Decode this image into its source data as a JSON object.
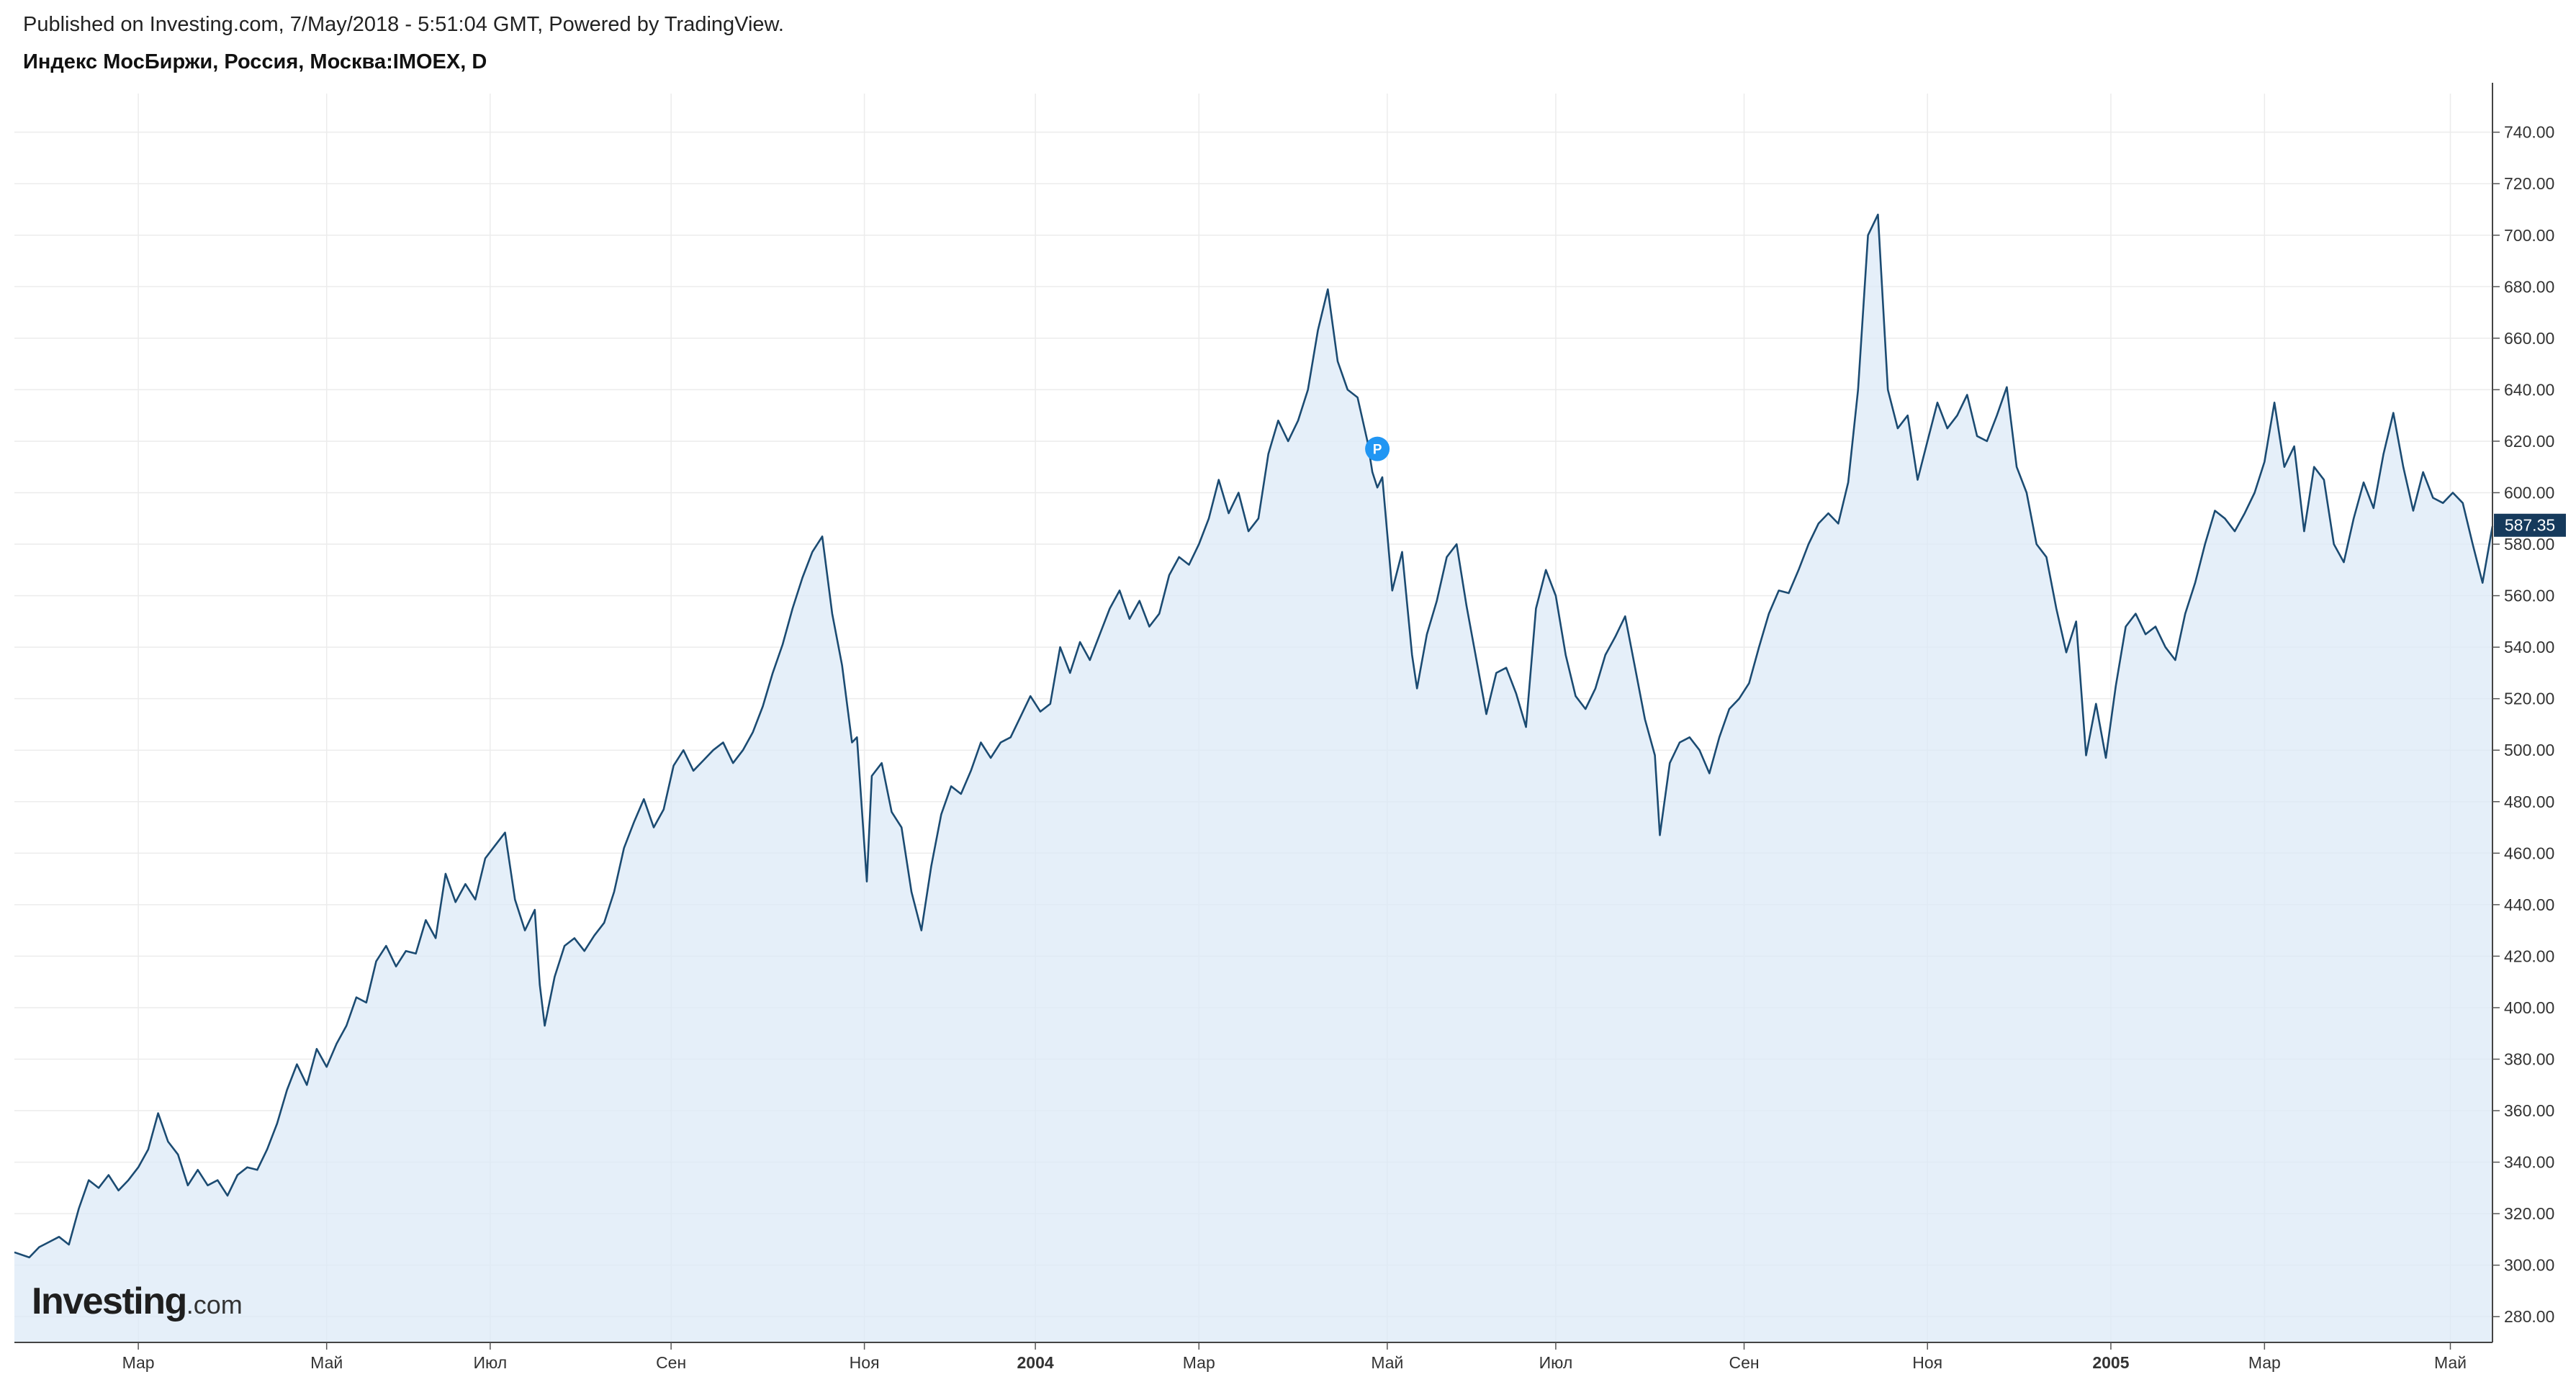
{
  "header": {
    "published": "Published on Investing.com, 7/May/2018 - 5:51:04 GMT, Powered by TradingView.",
    "instrument": "Индекс МосБиржи, Россия, Москва:IMOEX, D"
  },
  "logo": {
    "main": "Investing",
    "suffix": ".com"
  },
  "colors": {
    "line": "#1b4b72",
    "fill": "#dce9f7",
    "grid": "#ececec",
    "price_tag": "#163a5c",
    "marker": "#2196f3"
  },
  "chart_data": {
    "type": "area",
    "title": "Индекс МосБиржи, Россия, Москва:IMOEX, D",
    "ylim": [
      270,
      755
    ],
    "y_ticks": [
      "280.00",
      "300.00",
      "320.00",
      "340.00",
      "360.00",
      "380.00",
      "400.00",
      "420.00",
      "440.00",
      "460.00",
      "480.00",
      "500.00",
      "520.00",
      "540.00",
      "560.00",
      "580.00",
      "600.00",
      "620.00",
      "640.00",
      "660.00",
      "680.00",
      "700.00",
      "720.00",
      "740.00"
    ],
    "x_ticks": [
      {
        "label": "Мар",
        "t": 0.05,
        "bold": false
      },
      {
        "label": "Май",
        "t": 0.126,
        "bold": false
      },
      {
        "label": "Июл",
        "t": 0.192,
        "bold": false
      },
      {
        "label": "Сен",
        "t": 0.265,
        "bold": false
      },
      {
        "label": "Ноя",
        "t": 0.343,
        "bold": false
      },
      {
        "label": "2004",
        "t": 0.412,
        "bold": true
      },
      {
        "label": "Мар",
        "t": 0.478,
        "bold": false
      },
      {
        "label": "Май",
        "t": 0.554,
        "bold": false
      },
      {
        "label": "Июл",
        "t": 0.622,
        "bold": false
      },
      {
        "label": "Сен",
        "t": 0.698,
        "bold": false
      },
      {
        "label": "Ноя",
        "t": 0.772,
        "bold": false
      },
      {
        "label": "2005",
        "t": 0.846,
        "bold": true
      },
      {
        "label": "Мар",
        "t": 0.908,
        "bold": false
      },
      {
        "label": "Май",
        "t": 0.983,
        "bold": false
      }
    ],
    "last_value": "587.35",
    "marker_label": "P",
    "marker_point": {
      "t": 0.55,
      "value": 617
    },
    "series": [
      {
        "points": [
          [
            0.0,
            305
          ],
          [
            0.006,
            303
          ],
          [
            0.01,
            307
          ],
          [
            0.014,
            309
          ],
          [
            0.018,
            311
          ],
          [
            0.022,
            308
          ],
          [
            0.026,
            322
          ],
          [
            0.03,
            333
          ],
          [
            0.034,
            330
          ],
          [
            0.038,
            335
          ],
          [
            0.042,
            329
          ],
          [
            0.046,
            333
          ],
          [
            0.05,
            338
          ],
          [
            0.054,
            345
          ],
          [
            0.058,
            359
          ],
          [
            0.062,
            348
          ],
          [
            0.066,
            343
          ],
          [
            0.07,
            331
          ],
          [
            0.074,
            337
          ],
          [
            0.078,
            331
          ],
          [
            0.082,
            333
          ],
          [
            0.086,
            327
          ],
          [
            0.09,
            335
          ],
          [
            0.094,
            338
          ],
          [
            0.098,
            337
          ],
          [
            0.102,
            345
          ],
          [
            0.106,
            355
          ],
          [
            0.11,
            368
          ],
          [
            0.114,
            378
          ],
          [
            0.118,
            370
          ],
          [
            0.122,
            384
          ],
          [
            0.126,
            377
          ],
          [
            0.13,
            386
          ],
          [
            0.134,
            393
          ],
          [
            0.138,
            404
          ],
          [
            0.142,
            402
          ],
          [
            0.146,
            418
          ],
          [
            0.15,
            424
          ],
          [
            0.154,
            416
          ],
          [
            0.158,
            422
          ],
          [
            0.162,
            421
          ],
          [
            0.166,
            434
          ],
          [
            0.17,
            427
          ],
          [
            0.174,
            452
          ],
          [
            0.178,
            441
          ],
          [
            0.182,
            448
          ],
          [
            0.186,
            442
          ],
          [
            0.19,
            458
          ],
          [
            0.194,
            463
          ],
          [
            0.198,
            468
          ],
          [
            0.202,
            442
          ],
          [
            0.206,
            430
          ],
          [
            0.21,
            438
          ],
          [
            0.212,
            409
          ],
          [
            0.214,
            393
          ],
          [
            0.218,
            412
          ],
          [
            0.222,
            424
          ],
          [
            0.226,
            427
          ],
          [
            0.23,
            422
          ],
          [
            0.234,
            428
          ],
          [
            0.238,
            433
          ],
          [
            0.242,
            445
          ],
          [
            0.246,
            462
          ],
          [
            0.25,
            472
          ],
          [
            0.254,
            481
          ],
          [
            0.258,
            470
          ],
          [
            0.262,
            477
          ],
          [
            0.266,
            494
          ],
          [
            0.27,
            500
          ],
          [
            0.274,
            492
          ],
          [
            0.278,
            496
          ],
          [
            0.282,
            500
          ],
          [
            0.286,
            503
          ],
          [
            0.29,
            495
          ],
          [
            0.294,
            500
          ],
          [
            0.298,
            507
          ],
          [
            0.302,
            517
          ],
          [
            0.306,
            530
          ],
          [
            0.31,
            541
          ],
          [
            0.314,
            555
          ],
          [
            0.318,
            567
          ],
          [
            0.322,
            577
          ],
          [
            0.326,
            583
          ],
          [
            0.33,
            553
          ],
          [
            0.334,
            533
          ],
          [
            0.338,
            503
          ],
          [
            0.34,
            505
          ],
          [
            0.344,
            449
          ],
          [
            0.346,
            490
          ],
          [
            0.35,
            495
          ],
          [
            0.354,
            476
          ],
          [
            0.358,
            470
          ],
          [
            0.362,
            445
          ],
          [
            0.366,
            430
          ],
          [
            0.37,
            455
          ],
          [
            0.374,
            475
          ],
          [
            0.378,
            486
          ],
          [
            0.382,
            483
          ],
          [
            0.386,
            492
          ],
          [
            0.39,
            503
          ],
          [
            0.394,
            497
          ],
          [
            0.398,
            503
          ],
          [
            0.402,
            505
          ],
          [
            0.406,
            513
          ],
          [
            0.41,
            521
          ],
          [
            0.414,
            515
          ],
          [
            0.418,
            518
          ],
          [
            0.422,
            540
          ],
          [
            0.426,
            530
          ],
          [
            0.43,
            542
          ],
          [
            0.434,
            535
          ],
          [
            0.438,
            545
          ],
          [
            0.442,
            555
          ],
          [
            0.446,
            562
          ],
          [
            0.45,
            551
          ],
          [
            0.454,
            558
          ],
          [
            0.458,
            548
          ],
          [
            0.462,
            553
          ],
          [
            0.466,
            568
          ],
          [
            0.47,
            575
          ],
          [
            0.474,
            572
          ],
          [
            0.478,
            580
          ],
          [
            0.482,
            590
          ],
          [
            0.486,
            605
          ],
          [
            0.49,
            592
          ],
          [
            0.494,
            600
          ],
          [
            0.498,
            585
          ],
          [
            0.502,
            590
          ],
          [
            0.506,
            615
          ],
          [
            0.51,
            628
          ],
          [
            0.514,
            620
          ],
          [
            0.518,
            628
          ],
          [
            0.522,
            640
          ],
          [
            0.526,
            663
          ],
          [
            0.53,
            679
          ],
          [
            0.534,
            651
          ],
          [
            0.538,
            640
          ],
          [
            0.542,
            637
          ],
          [
            0.546,
            620
          ],
          [
            0.548,
            608
          ],
          [
            0.55,
            602
          ],
          [
            0.552,
            606
          ],
          [
            0.556,
            562
          ],
          [
            0.56,
            577
          ],
          [
            0.564,
            537
          ],
          [
            0.566,
            524
          ],
          [
            0.57,
            545
          ],
          [
            0.574,
            558
          ],
          [
            0.578,
            575
          ],
          [
            0.582,
            580
          ],
          [
            0.586,
            556
          ],
          [
            0.59,
            535
          ],
          [
            0.594,
            514
          ],
          [
            0.598,
            530
          ],
          [
            0.602,
            532
          ],
          [
            0.606,
            522
          ],
          [
            0.61,
            509
          ],
          [
            0.614,
            555
          ],
          [
            0.618,
            570
          ],
          [
            0.622,
            560
          ],
          [
            0.626,
            537
          ],
          [
            0.63,
            521
          ],
          [
            0.634,
            516
          ],
          [
            0.638,
            524
          ],
          [
            0.642,
            537
          ],
          [
            0.646,
            544
          ],
          [
            0.65,
            552
          ],
          [
            0.654,
            532
          ],
          [
            0.658,
            512
          ],
          [
            0.662,
            498
          ],
          [
            0.664,
            467
          ],
          [
            0.668,
            495
          ],
          [
            0.672,
            503
          ],
          [
            0.676,
            505
          ],
          [
            0.68,
            500
          ],
          [
            0.684,
            491
          ],
          [
            0.688,
            505
          ],
          [
            0.692,
            516
          ],
          [
            0.696,
            520
          ],
          [
            0.7,
            526
          ],
          [
            0.704,
            540
          ],
          [
            0.708,
            553
          ],
          [
            0.712,
            562
          ],
          [
            0.716,
            561
          ],
          [
            0.72,
            570
          ],
          [
            0.724,
            580
          ],
          [
            0.728,
            588
          ],
          [
            0.732,
            592
          ],
          [
            0.736,
            588
          ],
          [
            0.74,
            604
          ],
          [
            0.744,
            640
          ],
          [
            0.748,
            700
          ],
          [
            0.752,
            708
          ],
          [
            0.756,
            640
          ],
          [
            0.76,
            625
          ],
          [
            0.764,
            630
          ],
          [
            0.768,
            605
          ],
          [
            0.772,
            620
          ],
          [
            0.776,
            635
          ],
          [
            0.78,
            625
          ],
          [
            0.784,
            630
          ],
          [
            0.788,
            638
          ],
          [
            0.792,
            622
          ],
          [
            0.796,
            620
          ],
          [
            0.8,
            630
          ],
          [
            0.804,
            641
          ],
          [
            0.808,
            610
          ],
          [
            0.812,
            600
          ],
          [
            0.816,
            580
          ],
          [
            0.82,
            575
          ],
          [
            0.824,
            555
          ],
          [
            0.828,
            538
          ],
          [
            0.832,
            550
          ],
          [
            0.836,
            498
          ],
          [
            0.84,
            518
          ],
          [
            0.844,
            497
          ],
          [
            0.848,
            525
          ],
          [
            0.852,
            548
          ],
          [
            0.856,
            553
          ],
          [
            0.86,
            545
          ],
          [
            0.864,
            548
          ],
          [
            0.868,
            540
          ],
          [
            0.872,
            535
          ],
          [
            0.876,
            553
          ],
          [
            0.88,
            565
          ],
          [
            0.884,
            580
          ],
          [
            0.888,
            593
          ],
          [
            0.892,
            590
          ],
          [
            0.896,
            585
          ],
          [
            0.9,
            592
          ],
          [
            0.904,
            600
          ],
          [
            0.908,
            612
          ],
          [
            0.912,
            635
          ],
          [
            0.916,
            610
          ],
          [
            0.92,
            618
          ],
          [
            0.924,
            585
          ],
          [
            0.928,
            610
          ],
          [
            0.932,
            605
          ],
          [
            0.936,
            580
          ],
          [
            0.94,
            573
          ],
          [
            0.944,
            590
          ],
          [
            0.948,
            604
          ],
          [
            0.952,
            594
          ],
          [
            0.956,
            615
          ],
          [
            0.96,
            631
          ],
          [
            0.964,
            610
          ],
          [
            0.968,
            593
          ],
          [
            0.972,
            608
          ],
          [
            0.976,
            598
          ],
          [
            0.98,
            596
          ],
          [
            0.984,
            600
          ],
          [
            0.988,
            596
          ],
          [
            0.992,
            580
          ],
          [
            0.996,
            565
          ],
          [
            1.0,
            587
          ]
        ]
      }
    ]
  }
}
